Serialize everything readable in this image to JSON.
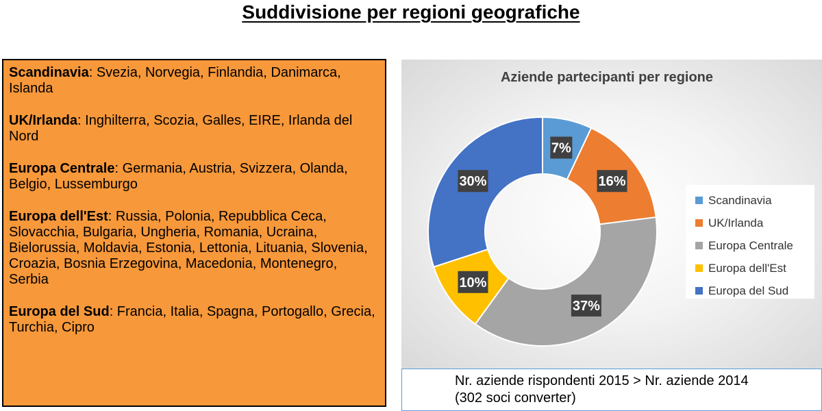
{
  "page": {
    "title": "Suddivisione per regioni geografiche",
    "note_line1": "Nr. aziende rispondenti 2015 > Nr. aziende 2014",
    "note_line2": "(302 soci converter)"
  },
  "regions": [
    {
      "name": "Scandinavia",
      "countries": ": Svezia, Norvegia, Finlandia, Danimarca, Islanda"
    },
    {
      "name": "UK/Irlanda",
      "countries": ": Inghilterra, Scozia, Galles, EIRE, Irlanda del Nord"
    },
    {
      "name": "Europa Centrale",
      "countries": ": Germania, Austria, Svizzera, Olanda, Belgio, Lussemburgo"
    },
    {
      "name": "Europa dell'Est",
      "countries": ": Russia, Polonia, Repubblica Ceca, Slovacchia, Bulgaria, Ungheria, Romania, Ucraina, Bielorussia, Moldavia, Estonia, Lettonia, Lituania, Slovenia, Croazia, Bosnia Erzegovina, Macedonia, Montenegro, Serbia"
    },
    {
      "name": "Europa del Sud",
      "countries": ": Francia, Italia, Spagna, Portogallo, Grecia, Turchia, Cipro"
    }
  ],
  "chart_data": {
    "type": "pie",
    "title": "Aziende partecipanti per regione",
    "donut": true,
    "legend_position": "right",
    "categories": [
      "Scandinavia",
      "UK/Irlanda",
      "Europa Centrale",
      "Europa dell'Est",
      "Europa del Sud"
    ],
    "legend_labels": [
      "Scandinavia",
      " UK/Irlanda",
      "Europa Centrale",
      "Europa dell'Est",
      "Europa del Sud"
    ],
    "values": [
      7,
      16,
      37,
      10,
      30
    ],
    "data_labels": [
      "7%",
      "16%",
      "37%",
      "10%",
      "30%"
    ],
    "colors": [
      "#5B9BD5",
      "#ED7D31",
      "#A5A5A5",
      "#FFC000",
      "#4472C4"
    ]
  }
}
